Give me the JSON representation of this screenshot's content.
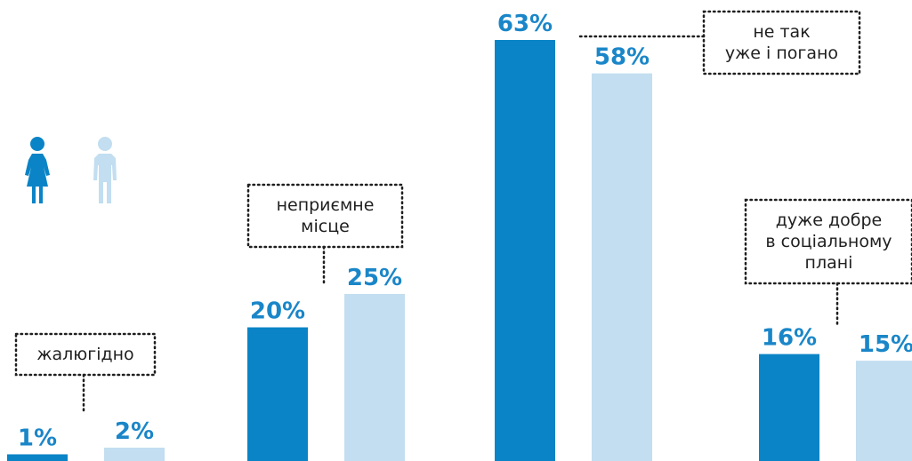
{
  "colors": {
    "female": "#0a84c6",
    "male": "#c2def0",
    "label": "#1a86c8",
    "annotation_text": "#1f1f1f"
  },
  "legend": {
    "female_icon": "female-figure-icon",
    "male_icon": "male-figure-icon"
  },
  "chart_data": {
    "type": "bar",
    "title": "",
    "xlabel": "",
    "ylabel": "",
    "categories": [
      "жалюгідно",
      "неприємне місце",
      "не так уже і погано",
      "дуже добре в соціальному плані"
    ],
    "series": [
      {
        "values": [
          1,
          20,
          63,
          16
        ]
      },
      {
        "values": [
          2,
          25,
          58,
          15
        ]
      }
    ],
    "value_labels": [
      [
        "1%",
        "20%",
        "63%",
        "16%"
      ],
      [
        "2%",
        "25%",
        "58%",
        "15%"
      ]
    ],
    "annotations": [
      [
        "жалюгідно"
      ],
      [
        "неприємне",
        "місце"
      ],
      [
        "не так",
        "уже і погано"
      ],
      [
        "дуже добре",
        "в соціальному",
        "плані"
      ]
    ],
    "ylim": [
      0,
      63
    ],
    "grid": false,
    "legend": "top-left"
  }
}
